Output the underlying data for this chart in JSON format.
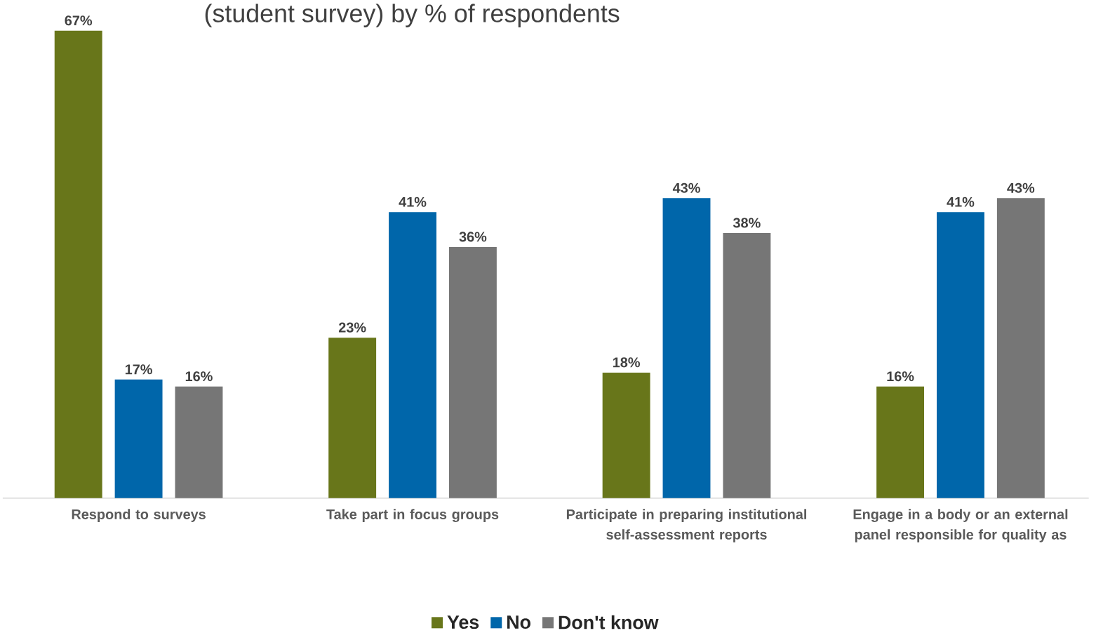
{
  "chart_data": {
    "type": "bar",
    "title": "(student survey) by % of respondents",
    "categories": [
      "Respond to surveys",
      "Take part in focus groups",
      "Participate in preparing institutional self-assessment reports",
      "Engage in a body or an external panel responsible for quality as"
    ],
    "series": [
      {
        "name": "Yes",
        "color": "#68761a",
        "values": [
          67,
          23,
          18,
          16
        ],
        "value_labels": [
          "67%",
          "23%",
          "18%",
          "16%"
        ]
      },
      {
        "name": "No",
        "color": "#0066aa",
        "values": [
          17,
          41,
          43,
          41
        ],
        "value_labels": [
          "17%",
          "41%",
          "43%",
          "41%"
        ]
      },
      {
        "name": "Don't know",
        "color": "#767676",
        "values": [
          16,
          36,
          38,
          43
        ],
        "value_labels": [
          "16%",
          "36%",
          "38%",
          "43%"
        ]
      }
    ],
    "legend": "bottom",
    "grid": false
  }
}
